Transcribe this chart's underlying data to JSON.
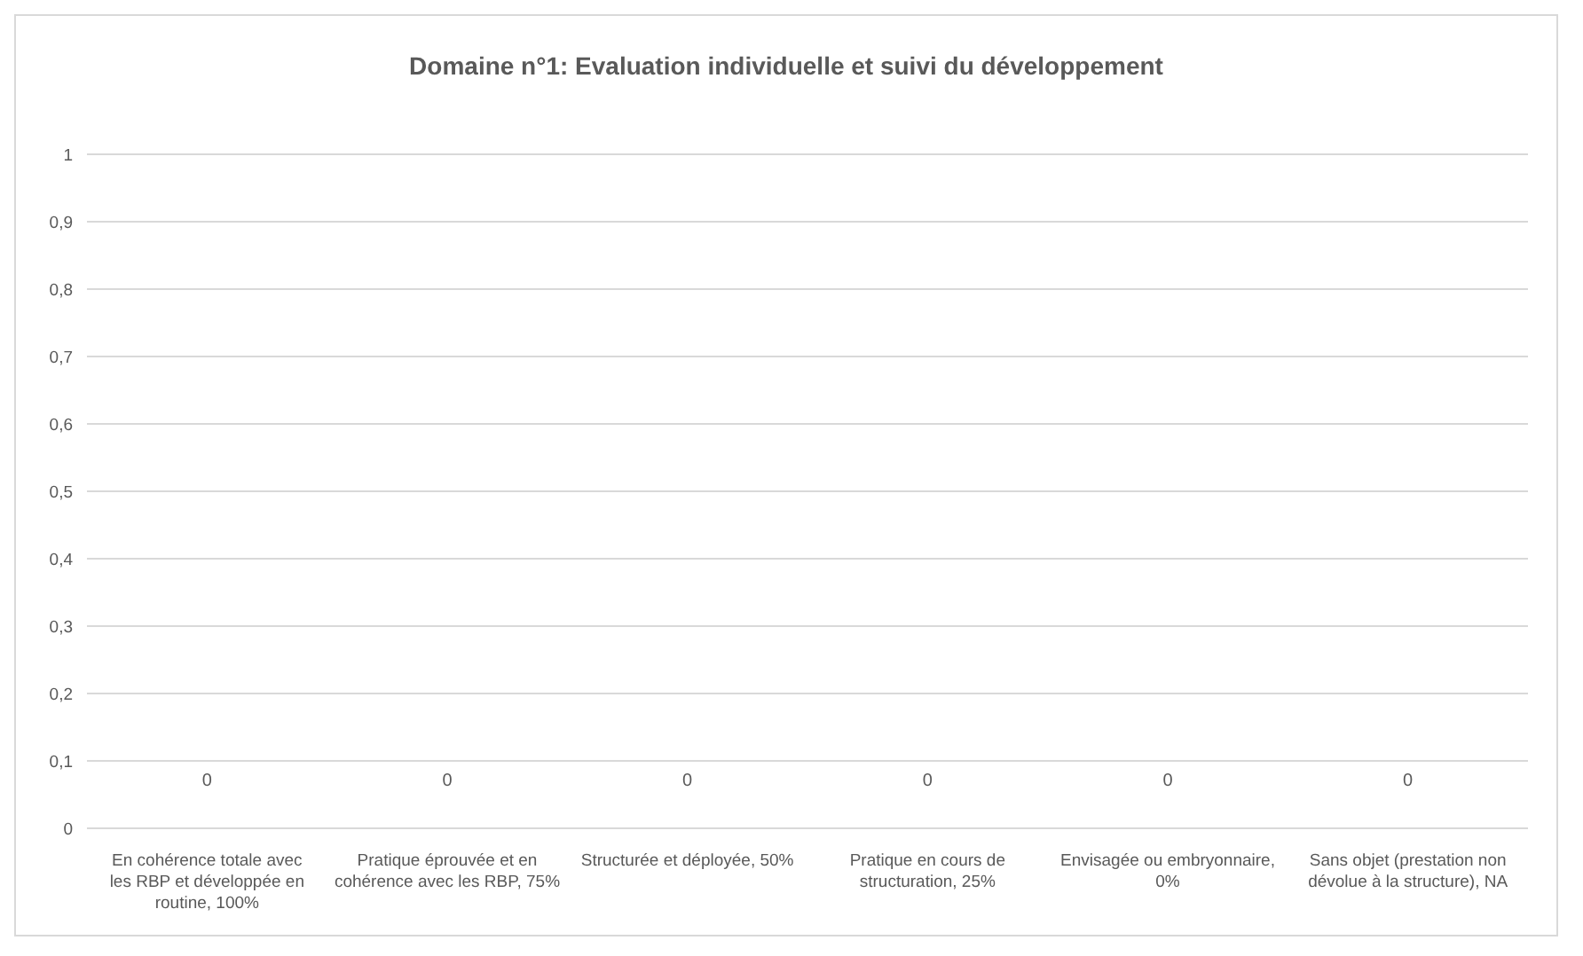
{
  "chart_data": {
    "type": "bar",
    "title": "Domaine n°1: Evaluation individuelle et suivi du développement",
    "categories": [
      "En cohérence totale avec les RBP et développée en routine, 100%",
      "Pratique éprouvée et en cohérence avec les RBP, 75%",
      "Structurée et déployée, 50%",
      "Pratique en cours de structuration, 25%",
      "Envisagée ou embryonnaire, 0%",
      "Sans objet (prestation non dévolue à la structure), NA"
    ],
    "values": [
      0,
      0,
      0,
      0,
      0,
      0
    ],
    "ylim": [
      0,
      1
    ],
    "yticks": [
      0,
      {
        "value": 0.1,
        "label": "0,1"
      },
      {
        "value": 0.2,
        "label": "0,2"
      },
      {
        "value": 0.3,
        "label": "0,3"
      },
      {
        "value": 0.4,
        "label": "0,4"
      },
      {
        "value": 0.5,
        "label": "0,5"
      },
      {
        "value": 0.6,
        "label": "0,6"
      },
      {
        "value": 0.7,
        "label": "0,7"
      },
      {
        "value": 0.8,
        "label": "0,8"
      },
      {
        "value": 0.9,
        "label": "0,9"
      },
      1
    ],
    "grid": "y",
    "data_labels": true
  }
}
